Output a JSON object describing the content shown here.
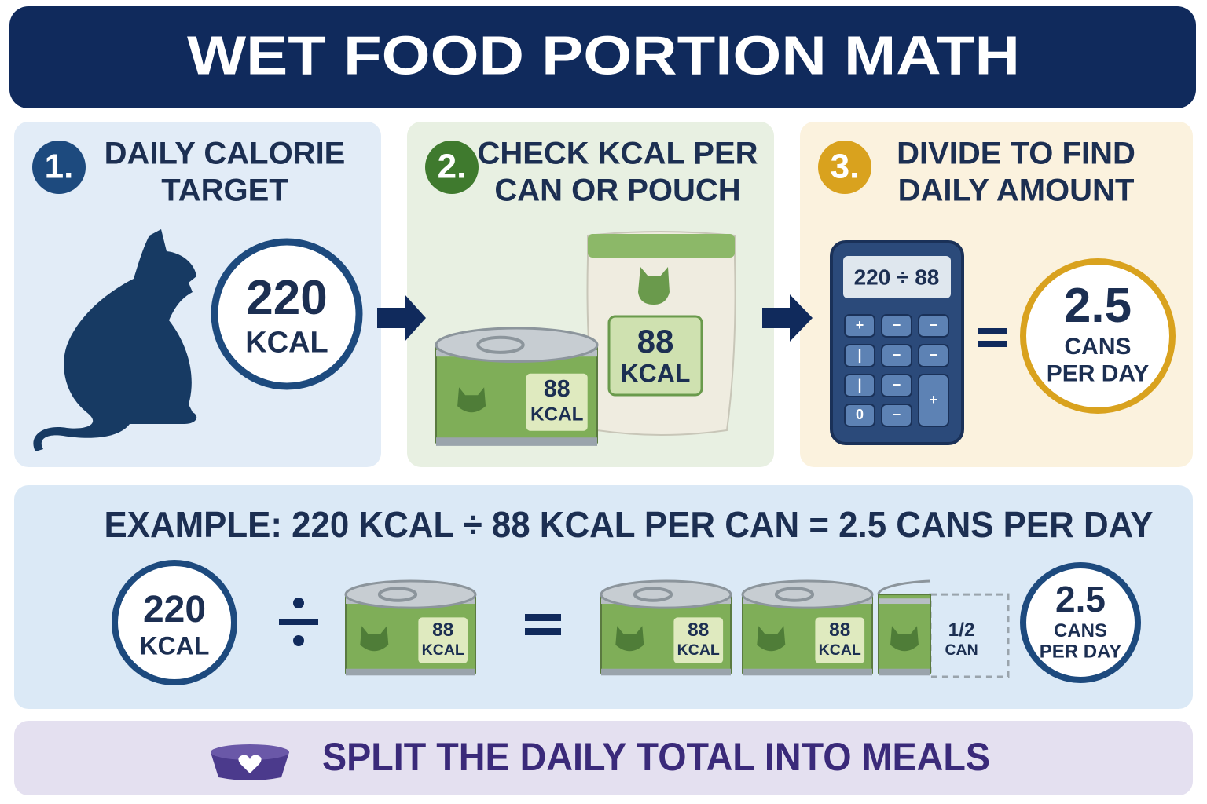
{
  "header": {
    "title": "WET FOOD PORTION MATH"
  },
  "steps": [
    {
      "number": "1.",
      "title_lines": [
        "DAILY CALORIE",
        "TARGET"
      ],
      "circle": {
        "value": "220",
        "unit": "KCAL"
      }
    },
    {
      "number": "2.",
      "title_lines": [
        "CHECK KCAL PER",
        "CAN OR POUCH"
      ],
      "can": {
        "value": "88",
        "unit": "KCAL"
      },
      "pouch": {
        "value": "88",
        "unit": "KCAL"
      }
    },
    {
      "number": "3.",
      "title_lines": [
        "DIVIDE TO FIND",
        "DAILY AMOUNT"
      ],
      "calculator": {
        "display": "220 ÷ 88",
        "keys": [
          "+",
          "−",
          "−",
          "|",
          "−",
          "−",
          "|",
          "−",
          "+",
          "0",
          "−"
        ]
      },
      "result": {
        "value": "2.5",
        "unit_lines": [
          "CANS",
          "PER DAY"
        ]
      }
    }
  ],
  "example": {
    "headline": "EXAMPLE: 220 KCAL ÷ 88 KCAL PER CAN = 2.5 CANS PER DAY",
    "circle": {
      "value": "220",
      "unit": "KCAL"
    },
    "can": {
      "value": "88",
      "unit": "KCAL"
    },
    "result_cans": [
      {
        "value": "88",
        "unit": "KCAL"
      },
      {
        "value": "88",
        "unit": "KCAL"
      },
      {
        "value": "1/2",
        "unit": "CAN"
      }
    ],
    "result": {
      "value": "2.5",
      "unit_lines": [
        "CANS",
        "PER DAY"
      ]
    }
  },
  "footer": {
    "text": "SPLIT THE DAILY TOTAL INTO MEALS"
  }
}
